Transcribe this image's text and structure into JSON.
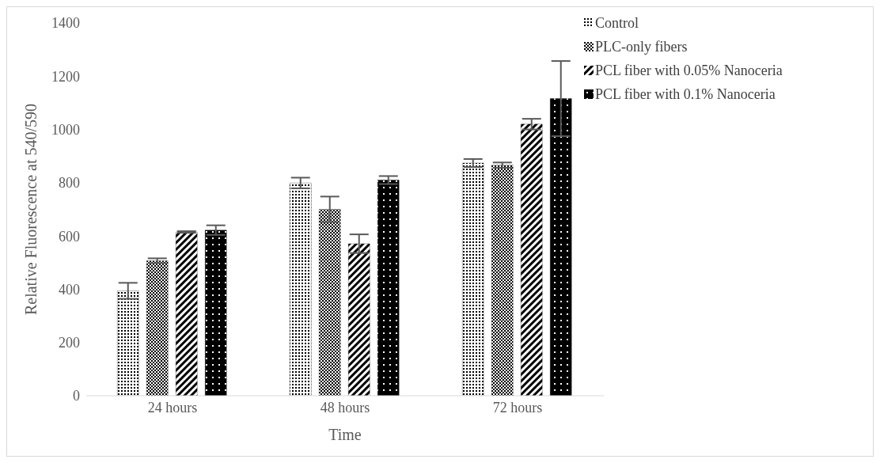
{
  "chart_data": {
    "type": "bar",
    "xlabel": "Time",
    "ylabel": "Relative Fluorescence at 540/590",
    "categories": [
      "24 hours",
      "48 hours",
      "72 hours"
    ],
    "series": [
      {
        "name": "Control",
        "color": "#000000",
        "values": [
          394,
          799,
          874
        ],
        "errors": [
          30,
          20,
          15
        ]
      },
      {
        "name": "PLC-only fibers",
        "color": "#000000",
        "values": [
          507,
          700,
          866
        ],
        "errors": [
          9,
          48,
          10
        ]
      },
      {
        "name": "PCL fiber with 0.05% Nanoceria",
        "color": "#000000",
        "values": [
          615,
          571,
          1020
        ],
        "errors": [
          3,
          35,
          20
        ]
      },
      {
        "name": "PCL fiber with 0.1% Nanoceria",
        "color": "#000000",
        "values": [
          622,
          810,
          1116
        ],
        "errors": [
          18,
          15,
          141
        ]
      }
    ],
    "ylim": [
      0,
      1400
    ],
    "yticks": [
      0,
      200,
      400,
      600,
      800,
      1000,
      1200,
      1400
    ],
    "grid": false,
    "legend": "top right"
  }
}
